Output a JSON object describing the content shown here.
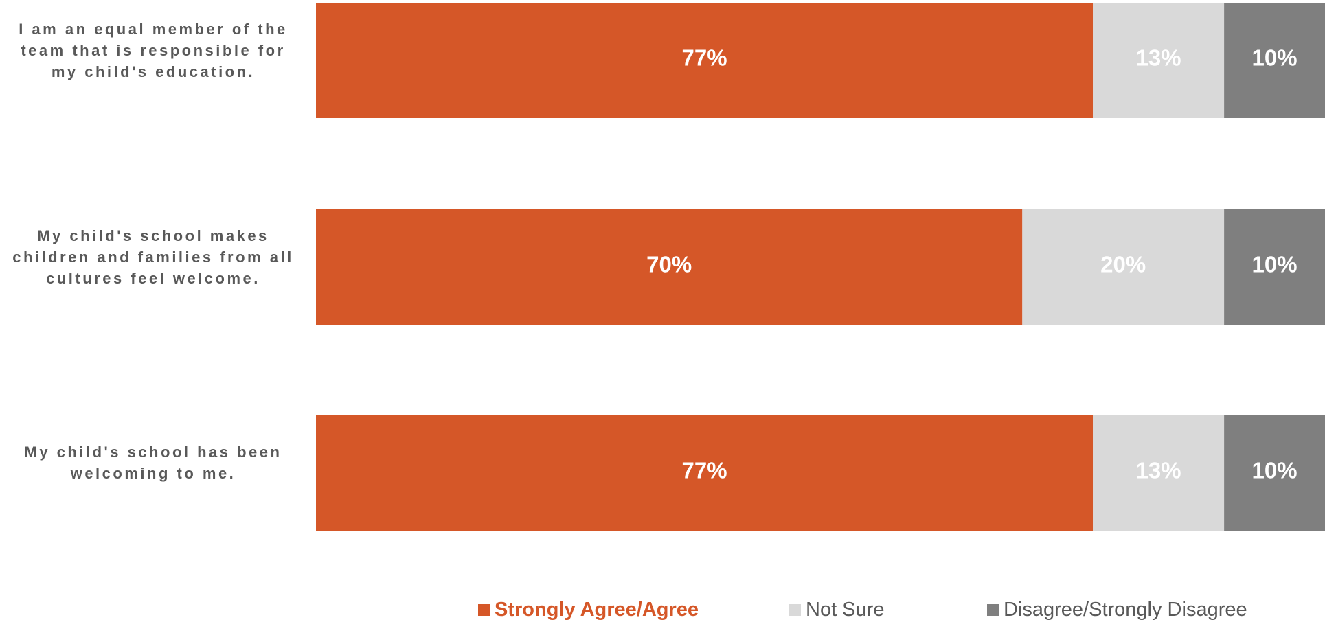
{
  "chart_data": {
    "type": "bar",
    "orientation": "horizontal",
    "stacked": true,
    "categories": [
      "I am an equal member of the team that is responsible for my child's education.",
      "My child's school makes children and families from all cultures feel welcome.",
      "My child's school has been welcoming to me."
    ],
    "series": [
      {
        "name": "Strongly Agree/Agree",
        "color": "#d55728",
        "values": [
          77,
          70,
          77
        ],
        "value_labels": [
          "77%",
          "70%",
          "77%"
        ]
      },
      {
        "name": "Not Sure",
        "color": "#d9d9d9",
        "values": [
          13,
          20,
          13
        ],
        "value_labels": [
          "13%",
          "20%",
          "13%"
        ]
      },
      {
        "name": "Disagree/Strongly Disagree",
        "color": "#7f7f7f",
        "values": [
          10,
          10,
          10
        ],
        "value_labels": [
          "10%",
          "10%",
          "10%"
        ]
      }
    ],
    "xlim": [
      0,
      100
    ],
    "legend": "bottom"
  }
}
